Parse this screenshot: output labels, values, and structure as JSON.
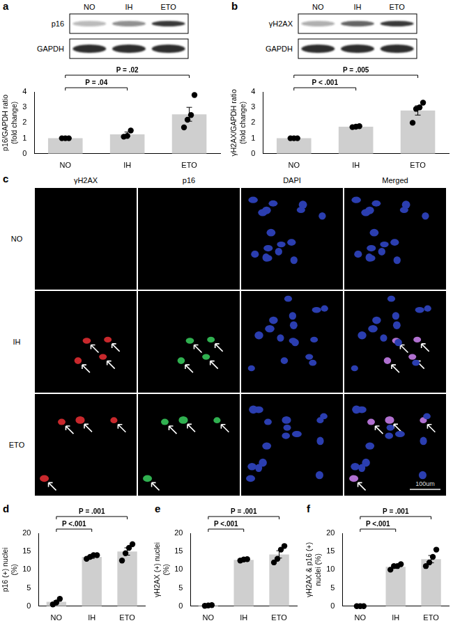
{
  "chart_data": [
    {
      "panel": "a",
      "type": "bar",
      "y_label": "p16/GAPDH ratio (fold change)",
      "categories": [
        "NO",
        "IH",
        "ETO"
      ],
      "values": [
        1.0,
        1.25,
        2.55
      ],
      "error": [
        0,
        0.15,
        0.45
      ],
      "points": [
        [
          1.0,
          1.0,
          1.0
        ],
        [
          1.1,
          1.15,
          1.5
        ],
        [
          1.7,
          2.2,
          2.5,
          3.8
        ]
      ],
      "color": "#cfcfcf",
      "ylim": [
        0,
        4
      ],
      "yticks": [
        0,
        1,
        2,
        3,
        4
      ],
      "grid": false,
      "annotations": [
        {
          "from": "NO",
          "to": "IH",
          "text": "P = .04"
        },
        {
          "from": "NO",
          "to": "ETO",
          "text": "P = .02"
        }
      ]
    },
    {
      "panel": "b",
      "type": "bar",
      "y_label": "γH2AX/GAPDH ratio (fold change)",
      "categories": [
        "NO",
        "IH",
        "ETO"
      ],
      "values": [
        1.0,
        1.75,
        2.8
      ],
      "error": [
        0,
        0.05,
        0.3
      ],
      "points": [
        [
          1.0,
          1.0,
          1.0
        ],
        [
          1.72,
          1.75,
          1.78
        ],
        [
          2.0,
          2.9,
          3.0,
          3.3
        ]
      ],
      "color": "#cfcfcf",
      "ylim": [
        0,
        4
      ],
      "yticks": [
        0,
        1,
        2,
        3,
        4
      ],
      "grid": false,
      "annotations": [
        {
          "from": "NO",
          "to": "IH",
          "text": "P < .001"
        },
        {
          "from": "NO",
          "to": "ETO",
          "text": "P = .005"
        }
      ]
    },
    {
      "panel": "d",
      "type": "bar",
      "y_label": "p16 (+) nuclei (%)",
      "categories": [
        "NO",
        "IH",
        "ETO"
      ],
      "values": [
        1.2,
        13.5,
        15.0
      ],
      "error": [
        0.3,
        0.4,
        1.0
      ],
      "points": [
        [
          0.5,
          1.0,
          2.0
        ],
        [
          13.0,
          13.5,
          14.0,
          14.0
        ],
        [
          12.5,
          14.5,
          16.0,
          17.0
        ]
      ],
      "color": "#cfcfcf",
      "ylim": [
        0,
        20
      ],
      "yticks": [
        0,
        5,
        10,
        15,
        20
      ],
      "grid": false,
      "annotations": [
        {
          "from": "NO",
          "to": "IH",
          "text": "P <.001"
        },
        {
          "from": "NO",
          "to": "ETO",
          "text": "P = .001"
        }
      ]
    },
    {
      "panel": "e",
      "type": "bar",
      "y_label": "γH2AX (+) nuclei (%)",
      "categories": [
        "NO",
        "IH",
        "ETO"
      ],
      "values": [
        0.2,
        12.7,
        14.2
      ],
      "error": [
        0.1,
        0.2,
        1.0
      ],
      "points": [
        [
          0.1,
          0.2,
          0.3
        ],
        [
          12.5,
          12.8,
          12.9
        ],
        [
          12.0,
          13.0,
          15.5,
          16.5
        ]
      ],
      "color": "#cfcfcf",
      "ylim": [
        0,
        20
      ],
      "yticks": [
        0,
        5,
        10,
        15,
        20
      ],
      "grid": false,
      "annotations": [
        {
          "from": "NO",
          "to": "IH",
          "text": "P <.001"
        },
        {
          "from": "NO",
          "to": "ETO",
          "text": "P = .001"
        }
      ]
    },
    {
      "panel": "f",
      "type": "bar",
      "y_label": "γH2AX & p16 (+) nuclei (%)",
      "categories": [
        "NO",
        "IH",
        "ETO"
      ],
      "values": [
        0,
        10.8,
        12.9
      ],
      "error": [
        0,
        0.4,
        1.0
      ],
      "points": [
        [
          0,
          0,
          0
        ],
        [
          10.0,
          11.0,
          11.0,
          11.5
        ],
        [
          11.0,
          12.0,
          13.5,
          15.5
        ]
      ],
      "color": "#cfcfcf",
      "ylim": [
        0,
        20
      ],
      "yticks": [
        0,
        5,
        10,
        15,
        20
      ],
      "grid": false,
      "annotations": [
        {
          "from": "NO",
          "to": "IH",
          "text": "P <.001"
        },
        {
          "from": "NO",
          "to": "ETO",
          "text": "P = .001"
        }
      ]
    }
  ],
  "blots": [
    {
      "lanes": [
        "NO",
        "IH",
        "ETO"
      ],
      "rows": [
        "p16",
        "GAPDH"
      ]
    },
    {
      "lanes": [
        "NO",
        "IH",
        "ETO"
      ],
      "rows": [
        "γH2AX",
        "GAPDH"
      ]
    }
  ],
  "micrographs": {
    "panel": "c",
    "columns": [
      "γH2AX",
      "p16",
      "DAPI",
      "Merged"
    ],
    "rows": [
      "NO",
      "IH",
      "ETO"
    ],
    "scale_bar": "100um"
  }
}
